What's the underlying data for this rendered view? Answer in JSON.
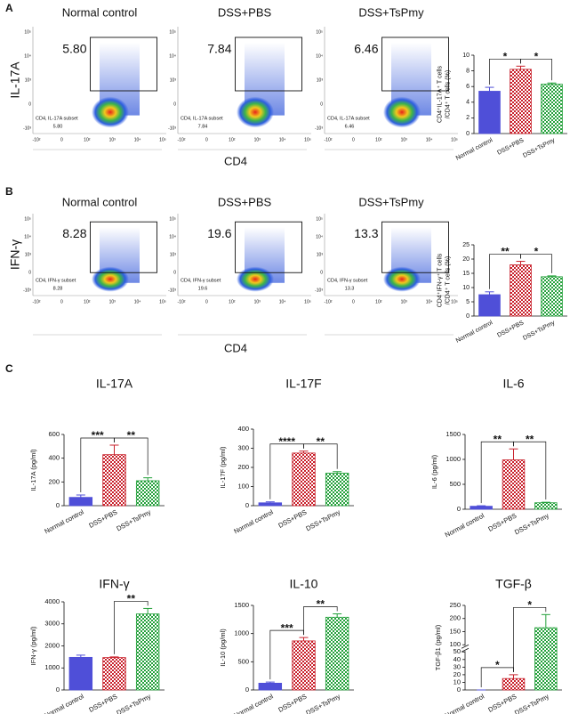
{
  "panel_labels": [
    "A",
    "B",
    "C"
  ],
  "flow": [
    {
      "ylabel": "IL-17A",
      "xlabel": "CD4",
      "xticks": [
        "-10²",
        "0",
        "10²",
        "10³",
        "10⁴",
        "10⁵"
      ],
      "yticks": [
        "10⁵",
        "10⁴",
        "10³",
        "0",
        "-10³"
      ],
      "plots": [
        {
          "title": "Normal control",
          "gate_value": "5.80",
          "subset": "CD4, IL-17A subset",
          "subset_value": "5.80"
        },
        {
          "title": "DSS+PBS",
          "gate_value": "7.84",
          "subset": "CD4, IL-17A subset",
          "subset_value": "7.84"
        },
        {
          "title": "DSS+TsPmy",
          "gate_value": "6.46",
          "subset": "CD4, IL-17A subset",
          "subset_value": "6.46"
        }
      ]
    },
    {
      "ylabel": "IFN-γ",
      "xlabel": "CD4",
      "xticks": [
        "-10²",
        "0",
        "10²",
        "10³",
        "10⁴",
        "10⁵"
      ],
      "yticks": [
        "10⁵",
        "10⁴",
        "10³",
        "0",
        "-10³"
      ],
      "plots": [
        {
          "title": "Normal control",
          "gate_value": "8.28",
          "subset": "CD4, IFN-γ subset",
          "subset_value": "8.28"
        },
        {
          "title": "DSS+PBS",
          "gate_value": "19.6",
          "subset": "CD4, IFN-γ subset",
          "subset_value": "19.6"
        },
        {
          "title": "DSS+TsPmy",
          "gate_value": "13.3",
          "subset": "CD4, IFN-γ subset",
          "subset_value": "13.3"
        }
      ]
    }
  ],
  "chart_data": [
    {
      "type": "bar",
      "ylabel": [
        "CD4⁺IL-17A⁺ T cells",
        "/CD4⁺ T cells (%)"
      ],
      "categories": [
        "Normal control",
        "DSS+PBS",
        "DSS+TsPmy"
      ],
      "values": [
        5.4,
        8.2,
        6.3
      ],
      "errors": [
        0.5,
        0.4,
        0.15
      ],
      "colors": [
        "#4f4fd8",
        "#c8202b",
        "#23a03a"
      ],
      "patterns": [
        "solid",
        "checker",
        "checker"
      ],
      "ylim": [
        0,
        10
      ],
      "yticks": [
        0,
        2,
        4,
        6,
        8,
        10
      ],
      "significance": [
        {
          "pair": [
            0,
            1
          ],
          "label": "*"
        },
        {
          "pair": [
            1,
            2
          ],
          "label": "*"
        }
      ]
    },
    {
      "type": "bar",
      "ylabel": [
        "CD4⁺IFN-γ⁺ T cells",
        "/CD4⁺ T cells (%)"
      ],
      "categories": [
        "Normal control",
        "DSS+PBS",
        "DSS+TsPmy"
      ],
      "values": [
        7.5,
        18,
        13.8
      ],
      "errors": [
        1,
        1.2,
        0.3
      ],
      "colors": [
        "#4f4fd8",
        "#c8202b",
        "#23a03a"
      ],
      "patterns": [
        "solid",
        "checker",
        "checker"
      ],
      "ylim": [
        0,
        25
      ],
      "yticks": [
        0,
        5,
        10,
        15,
        20,
        25
      ],
      "significance": [
        {
          "pair": [
            0,
            1
          ],
          "label": "**"
        },
        {
          "pair": [
            1,
            2
          ],
          "label": "*"
        }
      ]
    },
    {
      "type": "bar",
      "title": "IL-17A",
      "ylabel": [
        "IL-17A (pg/ml)"
      ],
      "categories": [
        "Normal control",
        "DSS+PBS",
        "DSS+TsPmy"
      ],
      "values": [
        70,
        430,
        210
      ],
      "errors": [
        20,
        80,
        25
      ],
      "colors": [
        "#4f4fd8",
        "#c8202b",
        "#23a03a"
      ],
      "patterns": [
        "solid",
        "checker",
        "checker"
      ],
      "ylim": [
        0,
        600
      ],
      "yticks": [
        0,
        200,
        400,
        600
      ],
      "significance": [
        {
          "pair": [
            0,
            1
          ],
          "label": "***"
        },
        {
          "pair": [
            1,
            2
          ],
          "label": "**"
        }
      ]
    },
    {
      "type": "bar",
      "title": "IL-17F",
      "ylabel": [
        "IL-17F (pg/ml)"
      ],
      "categories": [
        "Normal control",
        "DSS+PBS",
        "DSS+TsPmy"
      ],
      "values": [
        15,
        275,
        170
      ],
      "errors": [
        5,
        10,
        8
      ],
      "colors": [
        "#4f4fd8",
        "#c8202b",
        "#23a03a"
      ],
      "patterns": [
        "solid",
        "checker",
        "checker"
      ],
      "ylim": [
        0,
        400
      ],
      "yticks": [
        0,
        100,
        200,
        300,
        400
      ],
      "significance": [
        {
          "pair": [
            0,
            1
          ],
          "label": "****"
        },
        {
          "pair": [
            1,
            2
          ],
          "label": "**"
        }
      ]
    },
    {
      "type": "bar",
      "title": "IL-6",
      "ylabel": [
        "IL-6 (pg/ml)"
      ],
      "categories": [
        "Normal control",
        "DSS+PBS",
        "DSS+TsPmy"
      ],
      "values": [
        60,
        990,
        130
      ],
      "errors": [
        10,
        220,
        10
      ],
      "colors": [
        "#4f4fd8",
        "#c8202b",
        "#23a03a"
      ],
      "patterns": [
        "solid",
        "checker",
        "checker"
      ],
      "ylim": [
        0,
        1500
      ],
      "yticks": [
        0,
        500,
        1000,
        1500
      ],
      "significance": [
        {
          "pair": [
            0,
            1
          ],
          "label": "**"
        },
        {
          "pair": [
            1,
            2
          ],
          "label": "**"
        }
      ]
    },
    {
      "type": "bar",
      "title": "IFN-γ",
      "ylabel": [
        "IFN-γ (pg/ml)"
      ],
      "categories": [
        "Normal control",
        "DSS+PBS",
        "DSS+TsPmy"
      ],
      "values": [
        1480,
        1470,
        3450
      ],
      "errors": [
        100,
        30,
        250
      ],
      "colors": [
        "#4f4fd8",
        "#c8202b",
        "#23a03a"
      ],
      "patterns": [
        "solid",
        "checker",
        "checker"
      ],
      "ylim": [
        0,
        4000
      ],
      "yticks": [
        0,
        1000,
        2000,
        3000,
        4000
      ],
      "significance": [
        {
          "pair": [
            1,
            2
          ],
          "label": "**"
        }
      ]
    },
    {
      "type": "bar",
      "title": "IL-10",
      "ylabel": [
        "IL-10 (pg/ml)"
      ],
      "categories": [
        "Normal control",
        "DSS+PBS",
        "DSS+TsPmy"
      ],
      "values": [
        120,
        870,
        1290
      ],
      "errors": [
        20,
        60,
        60
      ],
      "colors": [
        "#4f4fd8",
        "#c8202b",
        "#23a03a"
      ],
      "patterns": [
        "solid",
        "checker",
        "checker"
      ],
      "ylim": [
        0,
        1500
      ],
      "yticks": [
        0,
        500,
        1000,
        1500
      ],
      "significance": [
        {
          "pair": [
            0,
            1
          ],
          "label": "***"
        },
        {
          "pair": [
            1,
            2
          ],
          "label": "**"
        }
      ]
    },
    {
      "type": "bar",
      "title": "TGF-β",
      "ylabel": [
        "TGF-β1 (pg/ml)"
      ],
      "categories": [
        "Normal control",
        "DSS+PBS",
        "DSS+TsPmy"
      ],
      "values": [
        0,
        15,
        165
      ],
      "errors": [
        0,
        5,
        50
      ],
      "colors": [
        "#4f4fd8",
        "#c8202b",
        "#23a03a"
      ],
      "patterns": [
        "solid",
        "checker",
        "checker"
      ],
      "ylim": [
        0,
        250
      ],
      "yticks": [
        0,
        10,
        20,
        30,
        40,
        50,
        100,
        150,
        200,
        250
      ],
      "axis_break": [
        50,
        100
      ],
      "significance": [
        {
          "pair": [
            0,
            1
          ],
          "label": "*"
        },
        {
          "pair": [
            1,
            2
          ],
          "label": "*"
        }
      ]
    }
  ]
}
